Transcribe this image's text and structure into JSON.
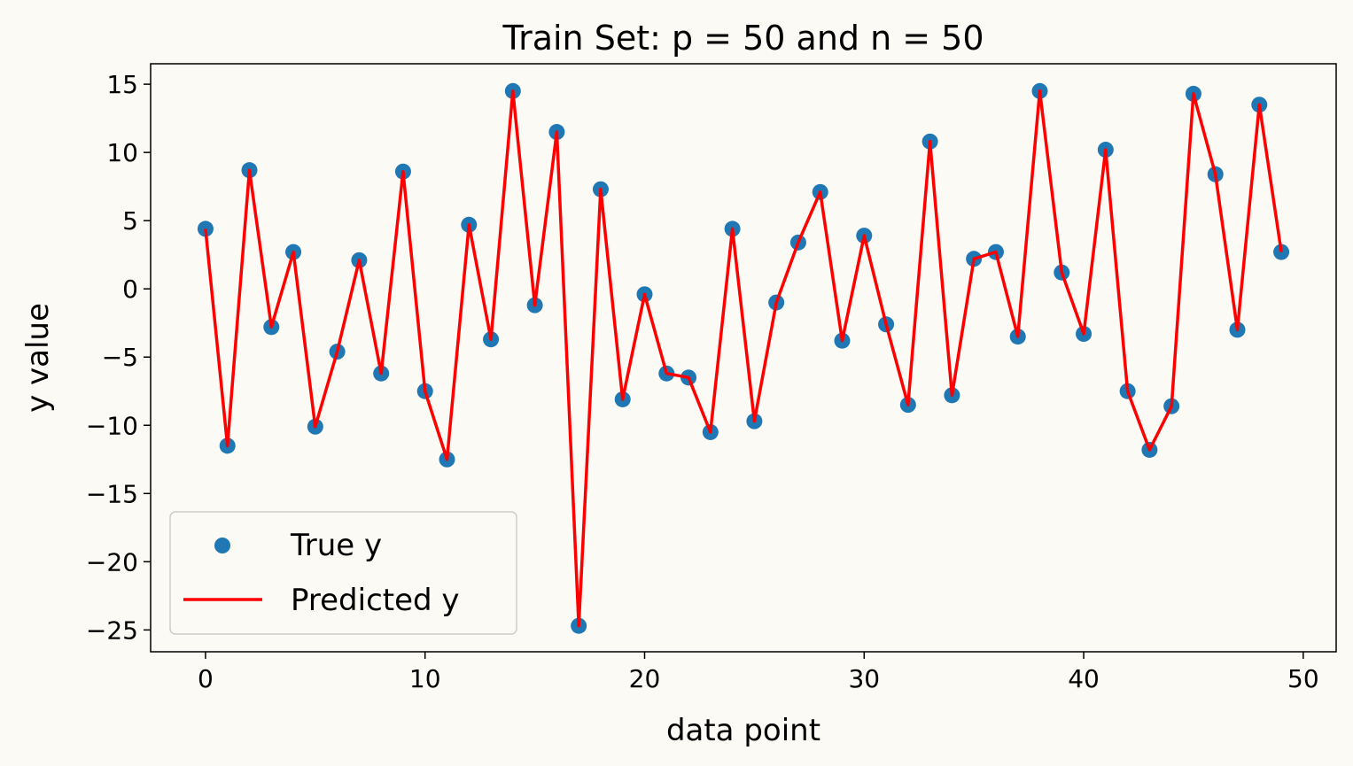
{
  "chart_data": {
    "type": "line",
    "title": "Train Set: p = 50 and n = 50",
    "xlabel": "data point",
    "ylabel": "y value",
    "xlim": [
      -2.5,
      51.5
    ],
    "ylim": [
      -26.6,
      16.5
    ],
    "xticks": [
      0,
      10,
      20,
      30,
      40,
      50
    ],
    "yticks": [
      15,
      10,
      5,
      0,
      -5,
      -10,
      -15,
      -20,
      -25
    ],
    "xtick_labels": [
      "0",
      "10",
      "20",
      "30",
      "40",
      "50"
    ],
    "ytick_labels": [
      "15",
      "10",
      "5",
      "0",
      "−5",
      "−10",
      "−15",
      "−20",
      "−25"
    ],
    "grid": false,
    "legend_position": "lower-left",
    "x": [
      0,
      1,
      2,
      3,
      4,
      5,
      6,
      7,
      8,
      9,
      10,
      11,
      12,
      13,
      14,
      15,
      16,
      17,
      18,
      19,
      20,
      21,
      22,
      23,
      24,
      25,
      26,
      27,
      28,
      29,
      30,
      31,
      32,
      33,
      34,
      35,
      36,
      37,
      38,
      39,
      40,
      41,
      42,
      43,
      44,
      45,
      46,
      47,
      48,
      49
    ],
    "series": [
      {
        "name": "True y",
        "kind": "scatter",
        "color": "#1f77b4",
        "values": [
          4.4,
          -11.5,
          8.7,
          -2.8,
          2.7,
          -10.1,
          -4.6,
          2.1,
          -6.2,
          8.6,
          -7.5,
          -12.5,
          4.7,
          -3.7,
          14.5,
          -1.2,
          11.5,
          -24.7,
          7.3,
          -8.1,
          -0.4,
          -6.2,
          -6.5,
          -10.5,
          4.4,
          -9.7,
          -1.0,
          3.4,
          7.1,
          -3.8,
          3.9,
          -2.6,
          -8.5,
          10.8,
          -7.8,
          2.2,
          2.7,
          -3.5,
          14.5,
          1.2,
          -3.3,
          10.2,
          -7.5,
          -11.8,
          -8.6,
          14.3,
          8.4,
          -3.0,
          13.5,
          2.7
        ]
      },
      {
        "name": "Predicted y",
        "kind": "line",
        "color": "#ff0000",
        "values": [
          4.4,
          -11.5,
          8.7,
          -2.8,
          2.7,
          -10.1,
          -4.6,
          2.1,
          -6.2,
          8.6,
          -7.5,
          -12.5,
          4.7,
          -3.7,
          14.5,
          -1.2,
          11.5,
          -24.7,
          7.3,
          -8.1,
          -0.4,
          -6.2,
          -6.5,
          -10.5,
          4.4,
          -9.7,
          -1.0,
          3.4,
          7.1,
          -3.8,
          3.9,
          -2.6,
          -8.5,
          10.8,
          -7.8,
          2.2,
          2.7,
          -3.5,
          14.5,
          1.2,
          -3.3,
          10.2,
          -7.5,
          -11.8,
          -8.6,
          14.3,
          8.4,
          -3.0,
          13.5,
          2.7
        ]
      }
    ]
  }
}
